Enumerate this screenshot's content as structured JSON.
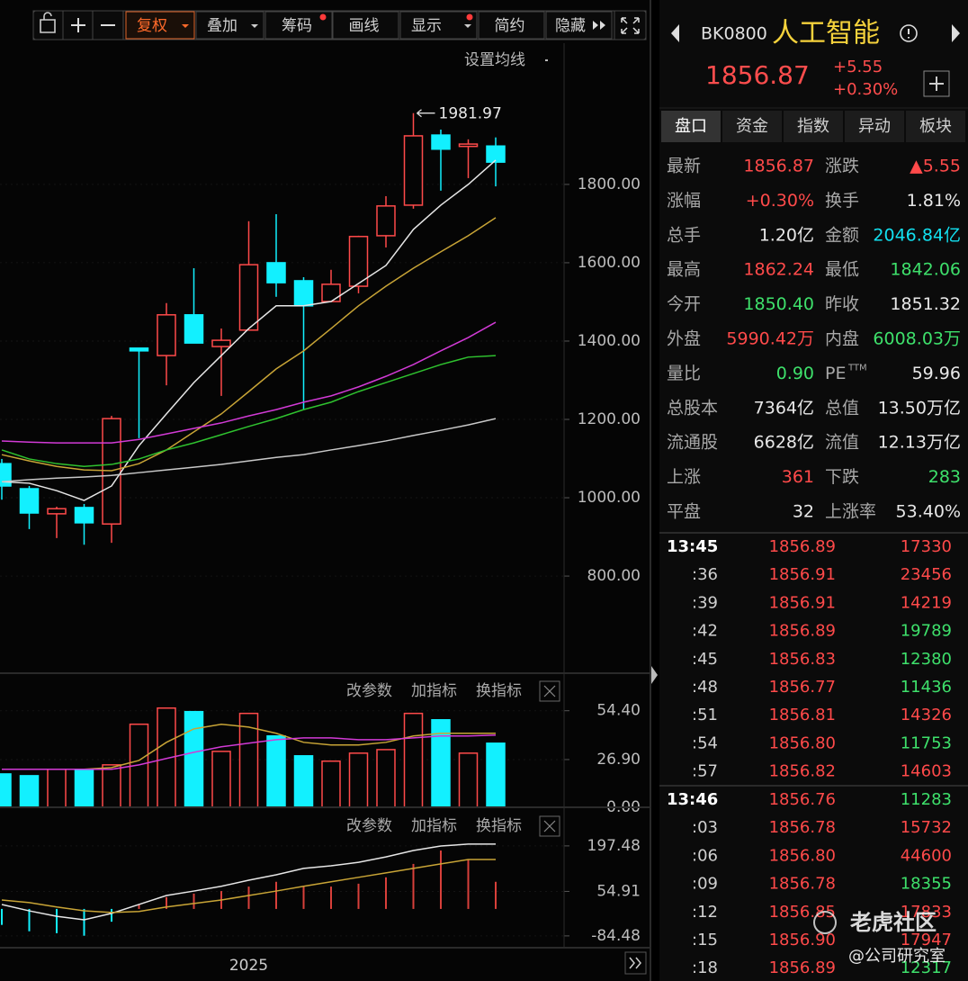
{
  "toolbar": {
    "buttons": [
      "复权",
      "叠加",
      "筹码",
      "画线",
      "显示",
      "简约",
      "隐藏"
    ]
  },
  "chart_data": [
    {
      "type": "candlestick",
      "settings_label": "设置均线",
      "open": [
        1087,
        1023,
        959,
        975,
        933,
        1382,
        1363,
        1467,
        1386,
        1428,
        1600,
        1554,
        1501,
        1540,
        1669,
        1747,
        1926,
        1897,
        1898
      ],
      "high": [
        1099,
        1030,
        977,
        984,
        1209,
        1382,
        1497,
        1586,
        1432,
        1706,
        1724,
        1563,
        1582,
        1669,
        1770,
        1981.97,
        1940,
        1915,
        1920
      ],
      "low": [
        995,
        920,
        897,
        880,
        885,
        1152,
        1287,
        1395,
        1260,
        1428,
        1513,
        1225,
        1501,
        1522,
        1639,
        1738,
        1784,
        1816,
        1795
      ],
      "close": [
        1030,
        961,
        972,
        936,
        1202,
        1375,
        1467,
        1395,
        1402,
        1595,
        1549,
        1490,
        1545,
        1667,
        1745,
        1924,
        1890,
        1903,
        1856.87
      ],
      "up_color": "#ff4a4a",
      "down_color": "#12f0ff",
      "series": [
        {
          "color": "#e6e6e6",
          "values": [
            1041,
            1037,
            1018,
            993,
            1030,
            1133,
            1214,
            1294,
            1363,
            1432,
            1490,
            1490,
            1501,
            1547,
            1593,
            1685,
            1747,
            1800,
            1862
          ]
        },
        {
          "color": "#c8a436",
          "values": [
            1110,
            1094,
            1080,
            1071,
            1069,
            1087,
            1122,
            1168,
            1214,
            1271,
            1329,
            1375,
            1432,
            1490,
            1540,
            1586,
            1628,
            1669,
            1715
          ]
        },
        {
          "color": "#d23ad6",
          "values": [
            1145,
            1142,
            1140,
            1140,
            1140,
            1149,
            1163,
            1177,
            1191,
            1209,
            1225,
            1244,
            1260,
            1283,
            1310,
            1340,
            1375,
            1409,
            1448
          ]
        },
        {
          "color": "#2fc22f",
          "values": [
            1122,
            1099,
            1087,
            1080,
            1085,
            1099,
            1122,
            1140,
            1161,
            1182,
            1202,
            1225,
            1244,
            1271,
            1294,
            1317,
            1340,
            1359,
            1363
          ]
        },
        {
          "color": "#c8c8c8",
          "values": [
            1041,
            1046,
            1050,
            1053,
            1057,
            1064,
            1071,
            1078,
            1085,
            1094,
            1103,
            1110,
            1122,
            1133,
            1145,
            1159,
            1172,
            1186,
            1202
          ]
        }
      ],
      "ylim": [
        552,
        2087
      ],
      "yticks": [
        {
          "value": 800,
          "label": "800.00"
        },
        {
          "value": 1000,
          "label": "1000.00"
        },
        {
          "value": 1200,
          "label": "1200.00"
        },
        {
          "value": 1400,
          "label": "1400.00"
        },
        {
          "value": 1600,
          "label": "1600.00"
        },
        {
          "value": 1800,
          "label": "1800.00"
        }
      ]
    },
    {
      "type": "bar",
      "buttons": [
        "改参数",
        "加指标",
        "换指标"
      ],
      "values": [
        18.8,
        17.8,
        21.4,
        21.4,
        23.9,
        46.8,
        55.9,
        53.9,
        31.5,
        52.9,
        40.2,
        29.0,
        26.0,
        30.5,
        32.5,
        52.9,
        49.3,
        30.5,
        36.1
      ],
      "colors": [
        "#12f0ff",
        "#12f0ff",
        "#ff4a4a",
        "#12f0ff",
        "#ff4a4a",
        "#ff4a4a",
        "#ff4a4a",
        "#12f0ff",
        "#ff4a4a",
        "#ff4a4a",
        "#12f0ff",
        "#12f0ff",
        "#ff4a4a",
        "#ff4a4a",
        "#ff4a4a",
        "#ff4a4a",
        "#12f0ff",
        "#ff4a4a",
        "#12f0ff"
      ],
      "series": [
        {
          "color": "#c8a436",
          "values": [
            21.4,
            21.4,
            21.4,
            21.4,
            22.4,
            26.4,
            36.6,
            44.2,
            46.8,
            45.2,
            41.7,
            36.6,
            35.1,
            35.1,
            36.6,
            40.2,
            41.7,
            41.7,
            41.7
          ]
        },
        {
          "color": "#d23ad6",
          "values": [
            21.4,
            21.4,
            21.4,
            21.4,
            21.4,
            23.9,
            27.5,
            31.0,
            34.1,
            36.1,
            38.1,
            39.1,
            39.1,
            38.1,
            38.1,
            39.1,
            40.2,
            40.2,
            40.7
          ]
        }
      ],
      "ylim": [
        0,
        72
      ],
      "yticks": [
        {
          "value": 0,
          "label": "0.00"
        },
        {
          "value": 26.9,
          "label": "26.90"
        },
        {
          "value": 54.4,
          "label": "54.40"
        }
      ]
    },
    {
      "type": "bar",
      "buttons": [
        "改参数",
        "加指标",
        "换指标"
      ],
      "categories": [
        null,
        null,
        null,
        null,
        null,
        null,
        null,
        null,
        null,
        "2025",
        null,
        null,
        null,
        null,
        null,
        null,
        null,
        null,
        null
      ],
      "values": [
        -50,
        -70,
        -76,
        -84,
        -40,
        14,
        37,
        48,
        56,
        70,
        85,
        70,
        70,
        79,
        99,
        141,
        183,
        155,
        85
      ],
      "up_color": "#d8403a",
      "down_color": "#12f0ff",
      "series": [
        {
          "color": "#e6e6e6",
          "values": [
            14,
            -6,
            -23,
            -34,
            -14,
            14,
            42,
            56,
            71,
            90,
            107,
            127,
            135,
            146,
            163,
            183,
            197,
            203,
            203
          ]
        },
        {
          "color": "#c8a436",
          "values": [
            28,
            20,
            6,
            -6,
            -11,
            -8,
            6,
            17,
            28,
            42,
            56,
            71,
            85,
            99,
            113,
            127,
            141,
            155,
            155
          ]
        }
      ],
      "ylim": [
        -113,
        231
      ],
      "yticks": [
        -84.48,
        54.91,
        197.48
      ]
    }
  ],
  "header": {
    "code": "BK0800",
    "name": "人工智能",
    "price": "1856.87",
    "change": "+5.55",
    "change_pct": "+0.30%"
  },
  "tabs": [
    "盘口",
    "资金",
    "指数",
    "异动",
    "板块"
  ],
  "quote": {
    "rows": [
      [
        {
          "label": "最新",
          "value": "1856.87",
          "color": "#ff4a4a"
        },
        {
          "label": "涨跌",
          "value": "▲5.55",
          "color": "#ff4a4a"
        }
      ],
      [
        {
          "label": "涨幅",
          "value": "+0.30%",
          "color": "#ff4a4a"
        },
        {
          "label": "换手",
          "value": "1.81%",
          "color": "#e8e8e8"
        }
      ],
      [
        {
          "label": "总手",
          "value": "1.20亿",
          "color": "#e8e8e8"
        },
        {
          "label": "金额",
          "value": "2046.84亿",
          "color": "#12e0f0"
        }
      ],
      [
        {
          "label": "最高",
          "value": "1862.24",
          "color": "#ff4a4a"
        },
        {
          "label": "最低",
          "value": "1842.06",
          "color": "#3ee06b"
        }
      ],
      [
        {
          "label": "今开",
          "value": "1850.40",
          "color": "#3ee06b"
        },
        {
          "label": "昨收",
          "value": "1851.32",
          "color": "#e8e8e8"
        }
      ],
      [
        {
          "label": "外盘",
          "value": "5990.42万",
          "color": "#ff4a4a"
        },
        {
          "label": "内盘",
          "value": "6008.03万",
          "color": "#3ee06b"
        }
      ],
      [
        {
          "label": "量比",
          "value": "0.90",
          "color": "#3ee06b"
        },
        {
          "label": "PE",
          "sup": "TTM",
          "value": "59.96",
          "color": "#e8e8e8"
        }
      ],
      [
        {
          "label": "总股本",
          "value": "7364亿",
          "color": "#e8e8e8"
        },
        {
          "label": "总值",
          "value": "13.50万亿",
          "color": "#e8e8e8"
        }
      ],
      [
        {
          "label": "流通股",
          "value": "6628亿",
          "color": "#e8e8e8"
        },
        {
          "label": "流值",
          "value": "12.13万亿",
          "color": "#e8e8e8"
        }
      ],
      [
        {
          "label": "上涨",
          "value": "361",
          "color": "#ff4a4a"
        },
        {
          "label": "下跌",
          "value": "283",
          "color": "#3ee06b"
        }
      ],
      [
        {
          "label": "平盘",
          "value": "32",
          "color": "#e8e8e8"
        },
        {
          "label": "上涨率",
          "value": "53.40%",
          "color": "#e8e8e8"
        }
      ]
    ]
  },
  "trades": {
    "groups": [
      {
        "rows": [
          {
            "time": "13:45",
            "price": "1856.89",
            "volume": "17330",
            "color": "#ff4a4a"
          },
          {
            "time": ":36",
            "price": "1856.91",
            "volume": "23456",
            "color": "#ff4a4a"
          },
          {
            "time": ":39",
            "price": "1856.91",
            "volume": "14219",
            "color": "#ff4a4a"
          },
          {
            "time": ":42",
            "price": "1856.89",
            "volume": "19789",
            "color": "#3ee06b"
          },
          {
            "time": ":45",
            "price": "1856.83",
            "volume": "12380",
            "color": "#3ee06b"
          },
          {
            "time": ":48",
            "price": "1856.77",
            "volume": "11436",
            "color": "#3ee06b"
          },
          {
            "time": ":51",
            "price": "1856.81",
            "volume": "14326",
            "color": "#ff4a4a"
          },
          {
            "time": ":54",
            "price": "1856.80",
            "volume": "11753",
            "color": "#3ee06b"
          },
          {
            "time": ":57",
            "price": "1856.82",
            "volume": "14603",
            "color": "#ff4a4a"
          }
        ]
      },
      {
        "rows": [
          {
            "time": "13:46",
            "price": "1856.76",
            "volume": "11283",
            "color": "#3ee06b"
          },
          {
            "time": ":03",
            "price": "1856.78",
            "volume": "15732",
            "color": "#ff4a4a"
          },
          {
            "time": ":06",
            "price": "1856.80",
            "volume": "44600",
            "color": "#ff4a4a"
          },
          {
            "time": ":09",
            "price": "1856.78",
            "volume": "18355",
            "color": "#3ee06b"
          },
          {
            "time": ":12",
            "price": "1856.85",
            "volume": "17833",
            "color": "#ff4a4a"
          },
          {
            "time": ":15",
            "price": "1856.90",
            "volume": "17947",
            "color": "#ff4a4a"
          },
          {
            "time": ":18",
            "price": "1856.89",
            "volume": "12317",
            "color": "#3ee06b"
          }
        ]
      }
    ]
  },
  "watermark": {
    "brand": "老虎社区",
    "handle": "@公司研究室"
  }
}
